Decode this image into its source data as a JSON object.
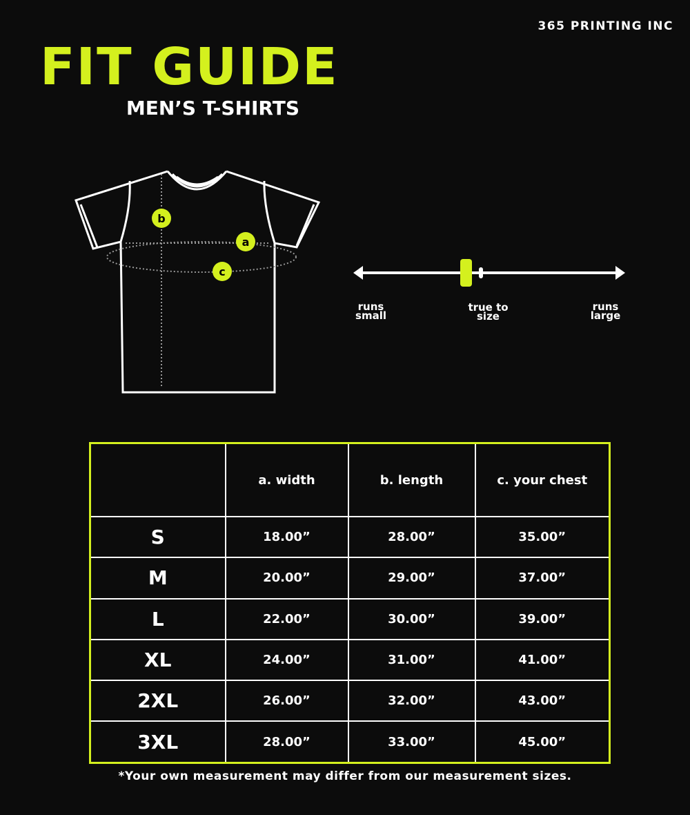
{
  "brand": "365 PRINTING INC",
  "title": "FIT GUIDE",
  "subtitle": "MEN’S T-SHIRTS",
  "diagram": {
    "markers": [
      "a",
      "b",
      "c"
    ]
  },
  "fit_scale": {
    "left": [
      "runs",
      "small"
    ],
    "center": [
      "true to",
      "size"
    ],
    "right": [
      "runs",
      "large"
    ],
    "indicator_position_percent": 42,
    "accent": "#d4f01e"
  },
  "table": {
    "headers": [
      "",
      "a. width",
      "b. length",
      "c. your chest"
    ],
    "rows": [
      [
        "S",
        "18.00”",
        "28.00”",
        "35.00”"
      ],
      [
        "M",
        "20.00”",
        "29.00”",
        "37.00”"
      ],
      [
        "L",
        "22.00”",
        "30.00”",
        "39.00”"
      ],
      [
        "XL",
        "24.00”",
        "31.00”",
        "41.00”"
      ],
      [
        "2XL",
        "26.00”",
        "32.00”",
        "43.00”"
      ],
      [
        "3XL",
        "28.00”",
        "33.00”",
        "45.00”"
      ]
    ]
  },
  "footnote": "*Your own measurement may differ from our measurement sizes."
}
